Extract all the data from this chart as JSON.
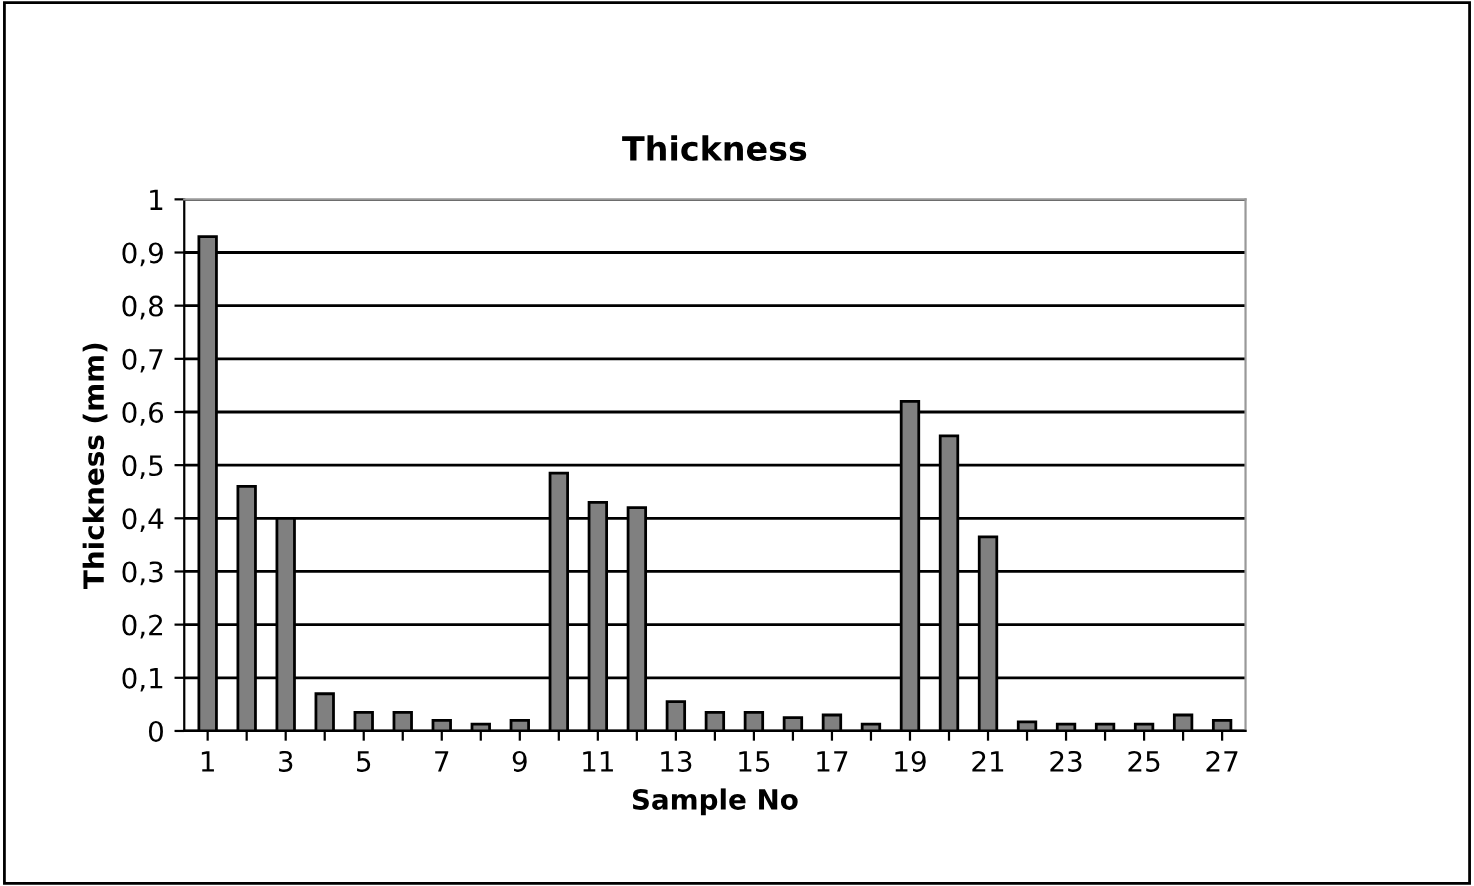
{
  "chart_data": {
    "type": "bar",
    "title": "Thickness",
    "xlabel": "Sample No",
    "ylabel": "Thickness (mm)",
    "categories": [
      "1",
      null,
      "3",
      null,
      "5",
      null,
      "7",
      null,
      "9",
      null,
      "11",
      null,
      "13",
      null,
      "15",
      null,
      "17",
      null,
      "19",
      null,
      "21",
      null,
      "23",
      null,
      "25",
      null,
      "27"
    ],
    "values": [
      0.93,
      0.46,
      0.4,
      0.07,
      0.035,
      0.035,
      0.02,
      0.013,
      0.02,
      0.485,
      0.43,
      0.42,
      0.055,
      0.035,
      0.035,
      0.025,
      0.03,
      0.013,
      0.62,
      0.555,
      0.365,
      0.017,
      0.013,
      0.013,
      0.013,
      0.03,
      0.02
    ],
    "color": "#808080",
    "ylim": [
      0,
      1
    ],
    "yticks": [
      0,
      {
        "value": 0.1,
        "label": "0,1"
      },
      {
        "value": 0.2,
        "label": "0,2"
      },
      {
        "value": 0.3,
        "label": "0,3"
      },
      {
        "value": 0.4,
        "label": "0,4"
      },
      {
        "value": 0.5,
        "label": "0,5"
      },
      {
        "value": 0.6,
        "label": "0,6"
      },
      {
        "value": 0.7,
        "label": "0,7"
      },
      {
        "value": 0.8,
        "label": "0,8"
      },
      {
        "value": 0.9,
        "label": "0,9"
      },
      1
    ],
    "grid": "y",
    "legend": false
  }
}
